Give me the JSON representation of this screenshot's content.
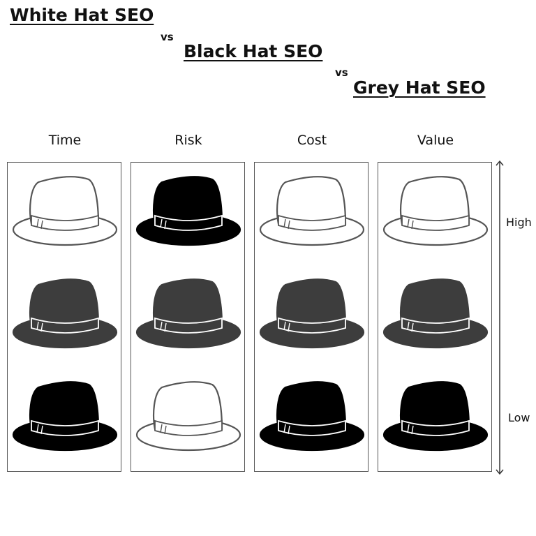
{
  "titles": {
    "white": "White Hat SEO",
    "vs1": "vs",
    "black": "Black Hat SEO",
    "vs2": "vs",
    "grey": "Grey Hat SEO"
  },
  "columns": [
    {
      "label": "Time",
      "hats": [
        "white",
        "grey",
        "black"
      ]
    },
    {
      "label": "Risk",
      "hats": [
        "black",
        "grey",
        "white"
      ]
    },
    {
      "label": "Cost",
      "hats": [
        "white",
        "grey",
        "black"
      ]
    },
    {
      "label": "Value",
      "hats": [
        "white",
        "grey",
        "black"
      ]
    }
  ],
  "scale": {
    "high": "High",
    "low": "Low"
  },
  "colors": {
    "white_hat_fill": "#ffffff",
    "grey_hat_fill": "#3d3d3d",
    "black_hat_fill": "#000000",
    "outline": "#555555"
  }
}
